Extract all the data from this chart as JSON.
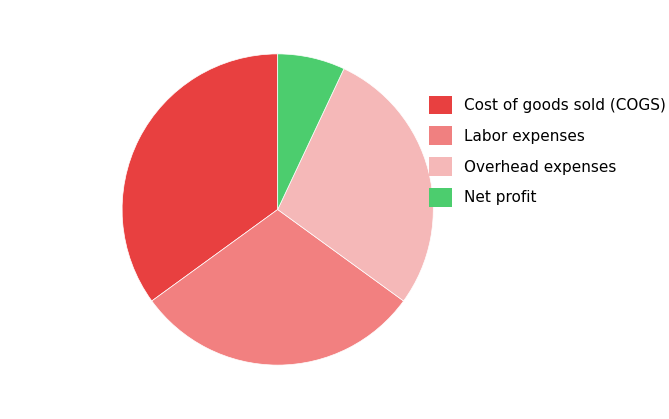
{
  "labels": [
    "Cost of goods sold (COGS)",
    "Labor expenses",
    "Overhead expenses",
    "Net profit"
  ],
  "values": [
    35,
    30,
    28,
    7
  ],
  "colors": [
    "#e84040",
    "#f28080",
    "#f5b8b8",
    "#4ccd6e"
  ],
  "legend_colors": [
    "#e84040",
    "#f08080",
    "#f5b8b8",
    "#4ccd6e"
  ],
  "startangle": 90,
  "background_color": "#ffffff"
}
